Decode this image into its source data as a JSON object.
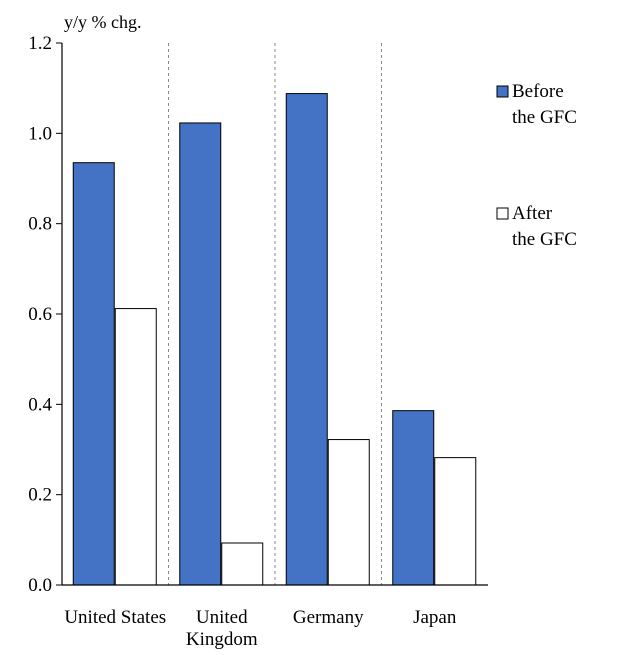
{
  "chart_data": {
    "type": "bar",
    "unit_label": "y/y % chg.",
    "categories": [
      [
        "United States"
      ],
      [
        "United",
        "Kingdom"
      ],
      [
        "Germany"
      ],
      [
        "Japan"
      ]
    ],
    "series": [
      {
        "name": [
          "Before",
          "the GFC"
        ],
        "values": [
          0.935,
          1.023,
          1.088,
          0.386
        ],
        "color": "#4472c4"
      },
      {
        "name": [
          "After",
          "the GFC"
        ],
        "values": [
          0.612,
          0.093,
          0.322,
          0.282
        ],
        "color": "#ffffff"
      }
    ],
    "ylim": [
      0.0,
      1.2
    ],
    "yticks": [
      "0.0",
      "0.2",
      "0.4",
      "0.6",
      "0.8",
      "1.0",
      "1.2"
    ],
    "separators": "dashed vertical lines between categories",
    "legend_position": "right",
    "grid": false
  }
}
